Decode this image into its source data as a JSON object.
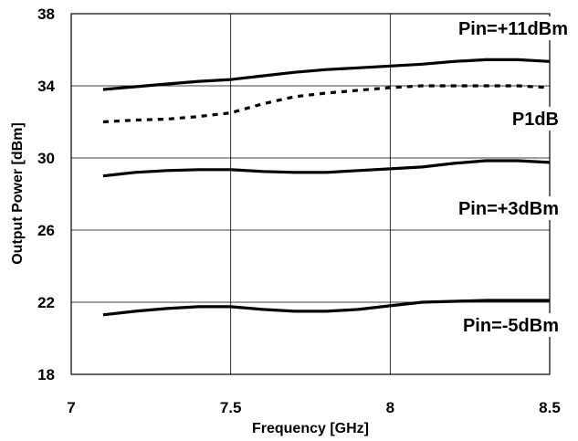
{
  "chart_data": {
    "type": "line",
    "title": "",
    "xlabel": "Frequency [GHz]",
    "ylabel": "Output Power [dBm]",
    "xlim": [
      7,
      8.5
    ],
    "ylim": [
      18,
      38
    ],
    "x_ticks": [
      "7",
      "7.5",
      "8",
      "8.5"
    ],
    "y_ticks": [
      "18",
      "22",
      "26",
      "30",
      "34",
      "38"
    ],
    "grid": true,
    "x": [
      7.1,
      7.2,
      7.3,
      7.4,
      7.5,
      7.6,
      7.7,
      7.8,
      7.9,
      8.0,
      8.1,
      8.2,
      8.3,
      8.4,
      8.5
    ],
    "series": [
      {
        "name": "Pin=+11dBm",
        "style": "solid",
        "values": [
          33.8,
          33.95,
          34.1,
          34.25,
          34.35,
          34.55,
          34.75,
          34.9,
          35.0,
          35.1,
          35.2,
          35.35,
          35.45,
          35.45,
          35.35
        ]
      },
      {
        "name": "P1dB",
        "style": "dotted",
        "values": [
          32.0,
          32.1,
          32.15,
          32.3,
          32.5,
          33.0,
          33.4,
          33.6,
          33.75,
          33.9,
          34.0,
          34.0,
          34.0,
          34.0,
          33.9
        ]
      },
      {
        "name": "Pin=+3dBm",
        "style": "solid",
        "values": [
          29.0,
          29.2,
          29.3,
          29.35,
          29.35,
          29.25,
          29.2,
          29.2,
          29.3,
          29.4,
          29.5,
          29.7,
          29.85,
          29.85,
          29.75
        ]
      },
      {
        "name": "Pin=-5dBm",
        "style": "solid",
        "values": [
          21.3,
          21.5,
          21.65,
          21.75,
          21.75,
          21.6,
          21.5,
          21.5,
          21.6,
          21.8,
          22.0,
          22.05,
          22.1,
          22.1,
          22.1
        ]
      }
    ],
    "annotations": [
      {
        "text": "Pin=+11dBm",
        "series": "Pin=+11dBm"
      },
      {
        "text": "P1dB",
        "series": "P1dB"
      },
      {
        "text": "Pin=+3dBm",
        "series": "Pin=+3dBm"
      },
      {
        "text": "Pin=-5dBm",
        "series": "Pin=-5dBm"
      }
    ]
  }
}
